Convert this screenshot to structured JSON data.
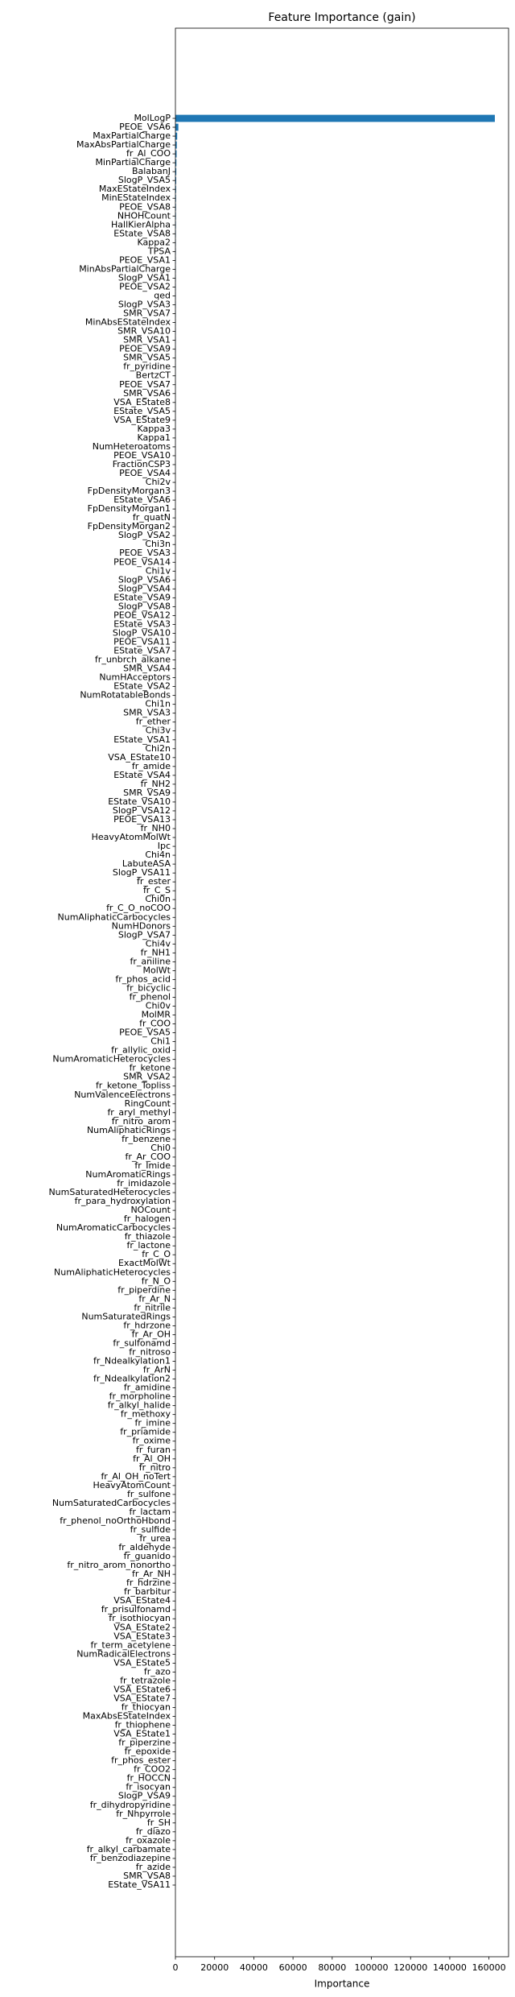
{
  "chart_data": {
    "type": "barh",
    "title": "Feature Importance (gain)",
    "xlabel": "Importance",
    "categories": [
      "MolLogP",
      "PEOE_VSA6",
      "MaxPartialCharge",
      "MaxAbsPartialCharge",
      "fr_Al_COO",
      "MinPartialCharge",
      "BalabanJ",
      "SlogP_VSA5",
      "MaxEStateIndex",
      "MinEStateIndex",
      "PEOE_VSA8",
      "NHOHCount",
      "HallKierAlpha",
      "EState_VSA8",
      "Kappa2",
      "TPSA",
      "PEOE_VSA1",
      "MinAbsPartialCharge",
      "SlogP_VSA1",
      "PEOE_VSA2",
      "qed",
      "SlogP_VSA3",
      "SMR_VSA7",
      "MinAbsEStateIndex",
      "SMR_VSA10",
      "SMR_VSA1",
      "PEOE_VSA9",
      "SMR_VSA5",
      "fr_pyridine",
      "BertzCT",
      "PEOE_VSA7",
      "SMR_VSA6",
      "VSA_EState8",
      "EState_VSA5",
      "VSA_EState9",
      "Kappa3",
      "Kappa1",
      "NumHeteroatoms",
      "PEOE_VSA10",
      "FractionCSP3",
      "PEOE_VSA4",
      "Chi2v",
      "FpDensityMorgan3",
      "EState_VSA6",
      "FpDensityMorgan1",
      "fr_quatN",
      "FpDensityMorgan2",
      "SlogP_VSA2",
      "Chi3n",
      "PEOE_VSA3",
      "PEOE_VSA14",
      "Chi1v",
      "SlogP_VSA6",
      "SlogP_VSA4",
      "EState_VSA9",
      "SlogP_VSA8",
      "PEOE_VSA12",
      "EState_VSA3",
      "SlogP_VSA10",
      "PEOE_VSA11",
      "EState_VSA7",
      "fr_unbrch_alkane",
      "SMR_VSA4",
      "NumHAcceptors",
      "EState_VSA2",
      "NumRotatableBonds",
      "Chi1n",
      "SMR_VSA3",
      "fr_ether",
      "Chi3v",
      "EState_VSA1",
      "Chi2n",
      "VSA_EState10",
      "fr_amide",
      "EState_VSA4",
      "fr_NH2",
      "SMR_VSA9",
      "EState_VSA10",
      "SlogP_VSA12",
      "PEOE_VSA13",
      "fr_NH0",
      "HeavyAtomMolWt",
      "Ipc",
      "Chi4n",
      "LabuteASA",
      "SlogP_VSA11",
      "fr_ester",
      "fr_C_S",
      "Chi0n",
      "fr_C_O_noCOO",
      "NumAliphaticCarbocycles",
      "NumHDonors",
      "SlogP_VSA7",
      "Chi4v",
      "fr_NH1",
      "fr_aniline",
      "MolWt",
      "fr_phos_acid",
      "fr_bicyclic",
      "fr_phenol",
      "Chi0v",
      "MolMR",
      "fr_COO",
      "PEOE_VSA5",
      "Chi1",
      "fr_allylic_oxid",
      "NumAromaticHeterocycles",
      "fr_ketone",
      "SMR_VSA2",
      "fr_ketone_Topliss",
      "NumValenceElectrons",
      "RingCount",
      "fr_aryl_methyl",
      "fr_nitro_arom",
      "NumAliphaticRings",
      "fr_benzene",
      "Chi0",
      "fr_Ar_COO",
      "fr_Imide",
      "NumAromaticRings",
      "fr_imidazole",
      "NumSaturatedHeterocycles",
      "fr_para_hydroxylation",
      "NOCount",
      "fr_halogen",
      "NumAromaticCarbocycles",
      "fr_thiazole",
      "fr_lactone",
      "fr_C_O",
      "ExactMolWt",
      "NumAliphaticHeterocycles",
      "fr_N_O",
      "fr_piperdine",
      "fr_Ar_N",
      "fr_nitrile",
      "NumSaturatedRings",
      "fr_hdrzone",
      "fr_Ar_OH",
      "fr_sulfonamd",
      "fr_nitroso",
      "fr_Ndealkylation1",
      "fr_ArN",
      "fr_Ndealkylation2",
      "fr_amidine",
      "fr_morpholine",
      "fr_alkyl_halide",
      "fr_methoxy",
      "fr_imine",
      "fr_priamide",
      "fr_oxime",
      "fr_furan",
      "fr_Al_OH",
      "fr_nitro",
      "fr_Al_OH_noTert",
      "HeavyAtomCount",
      "fr_sulfone",
      "NumSaturatedCarbocycles",
      "fr_lactam",
      "fr_phenol_noOrthoHbond",
      "fr_sulfide",
      "fr_urea",
      "fr_aldehyde",
      "fr_guanido",
      "fr_nitro_arom_nonortho",
      "fr_Ar_NH",
      "fr_hdrzine",
      "fr_barbitur",
      "VSA_EState4",
      "fr_prisulfonamd",
      "fr_isothiocyan",
      "VSA_EState2",
      "VSA_EState3",
      "fr_term_acetylene",
      "NumRadicalElectrons",
      "VSA_EState5",
      "fr_azo",
      "fr_tetrazole",
      "VSA_EState6",
      "VSA_EState7",
      "fr_thiocyan",
      "MaxAbsEStateIndex",
      "fr_thiophene",
      "VSA_EState1",
      "fr_piperzine",
      "fr_epoxide",
      "fr_phos_ester",
      "fr_COO2",
      "fr_HOCCN",
      "fr_isocyan",
      "SlogP_VSA9",
      "fr_dihydropyridine",
      "fr_Nhpyrrole",
      "fr_SH",
      "fr_diazo",
      "fr_oxazole",
      "fr_alkyl_carbamate",
      "fr_benzodiazepine",
      "fr_azide",
      "SMR_VSA8",
      "EState_VSA11"
    ],
    "values": [
      163000,
      1500,
      900,
      700,
      600,
      500,
      450,
      400,
      350,
      300,
      280,
      260,
      240,
      220,
      200,
      190,
      180,
      170,
      160,
      150,
      140,
      130,
      120,
      110,
      100,
      95,
      90,
      85,
      80,
      75,
      70,
      65,
      60,
      55,
      50,
      45,
      40,
      35,
      30,
      25,
      0,
      0,
      0,
      0,
      0,
      0,
      0,
      0,
      0,
      0,
      0,
      0,
      0,
      0,
      0,
      0,
      0,
      0,
      0,
      0,
      0,
      0,
      0,
      0,
      0,
      0,
      0,
      0,
      0,
      0,
      0,
      0,
      0,
      0,
      0,
      0,
      0,
      0,
      0,
      0,
      0,
      0,
      0,
      0,
      0,
      0,
      0,
      0,
      0,
      0,
      0,
      0,
      0,
      0,
      0,
      0,
      0,
      0,
      0,
      0,
      0,
      0,
      0,
      0,
      0,
      0,
      0,
      0,
      0,
      0,
      0,
      0,
      0,
      0,
      0,
      0,
      0,
      0,
      0,
      0,
      0,
      0,
      0,
      0,
      0,
      0,
      0,
      0,
      0,
      0,
      0,
      0,
      0,
      0,
      0,
      0,
      0,
      0,
      0,
      0,
      0,
      0,
      0,
      0,
      0,
      0,
      0,
      0,
      0,
      0,
      0,
      0,
      0,
      0,
      0,
      0,
      0,
      0,
      0,
      0,
      0,
      0,
      0,
      0,
      0,
      0,
      0,
      0,
      0,
      0,
      0,
      0,
      0,
      0,
      0,
      0,
      0,
      0,
      0,
      0,
      0,
      0,
      0,
      0,
      0,
      0,
      0,
      0,
      0,
      0,
      0,
      0,
      0,
      0,
      0,
      0,
      0,
      0,
      0,
      0
    ],
    "color": "#1f77b4",
    "xlim": [
      0,
      170000
    ],
    "xticks": [
      0,
      20000,
      40000,
      60000,
      80000,
      100000,
      120000,
      140000,
      160000
    ]
  }
}
